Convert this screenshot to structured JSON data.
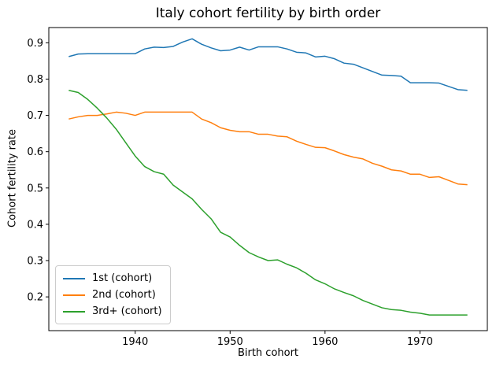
{
  "figure": {
    "title": "Italy cohort fertility by birth order",
    "xlabel": "Birth cohort",
    "ylabel": "Cohort fertility rate"
  },
  "chart_data": {
    "type": "line",
    "title": "Italy cohort fertility by birth order",
    "xlabel": "Birth cohort",
    "ylabel": "Cohort fertility rate",
    "grid": false,
    "legend_position": "lower left",
    "xlim": [
      1930.9,
      1977.1
    ],
    "ylim": [
      0.107,
      0.942
    ],
    "x_ticks": [
      1940,
      1950,
      1960,
      1970
    ],
    "y_ticks": [
      0.2,
      0.3,
      0.4,
      0.5,
      0.6,
      0.7,
      0.8,
      0.9
    ],
    "x": [
      1933,
      1934,
      1935,
      1936,
      1937,
      1938,
      1939,
      1940,
      1941,
      1942,
      1943,
      1944,
      1945,
      1946,
      1947,
      1948,
      1949,
      1950,
      1951,
      1952,
      1953,
      1954,
      1955,
      1956,
      1957,
      1958,
      1959,
      1960,
      1961,
      1962,
      1963,
      1964,
      1965,
      1966,
      1967,
      1968,
      1969,
      1970,
      1971,
      1972,
      1973,
      1974,
      1975
    ],
    "series": [
      {
        "name": "1st (cohort)",
        "color": "#1f77b4",
        "values": [
          0.862,
          0.869,
          0.87,
          0.87,
          0.87,
          0.87,
          0.87,
          0.87,
          0.883,
          0.888,
          0.887,
          0.89,
          0.902,
          0.911,
          0.896,
          0.886,
          0.878,
          0.88,
          0.888,
          0.88,
          0.889,
          0.889,
          0.889,
          0.883,
          0.874,
          0.872,
          0.861,
          0.863,
          0.856,
          0.844,
          0.841,
          0.831,
          0.821,
          0.811,
          0.81,
          0.808,
          0.79,
          0.79,
          0.79,
          0.789,
          0.78,
          0.771,
          0.769
        ]
      },
      {
        "name": "2nd (cohort)",
        "color": "#ff7f0e",
        "values": [
          0.69,
          0.696,
          0.7,
          0.7,
          0.704,
          0.709,
          0.706,
          0.7,
          0.709,
          0.709,
          0.709,
          0.709,
          0.709,
          0.709,
          0.69,
          0.68,
          0.666,
          0.659,
          0.655,
          0.655,
          0.648,
          0.648,
          0.643,
          0.641,
          0.629,
          0.62,
          0.612,
          0.611,
          0.602,
          0.592,
          0.585,
          0.58,
          0.568,
          0.56,
          0.55,
          0.547,
          0.538,
          0.538,
          0.529,
          0.531,
          0.521,
          0.511,
          0.509
        ]
      },
      {
        "name": "3rd+ (cohort)",
        "color": "#2ca02c",
        "values": [
          0.769,
          0.763,
          0.744,
          0.72,
          0.693,
          0.662,
          0.625,
          0.588,
          0.559,
          0.545,
          0.538,
          0.508,
          0.489,
          0.47,
          0.441,
          0.415,
          0.378,
          0.365,
          0.342,
          0.322,
          0.31,
          0.3,
          0.302,
          0.29,
          0.28,
          0.265,
          0.247,
          0.236,
          0.222,
          0.212,
          0.203,
          0.19,
          0.18,
          0.17,
          0.165,
          0.163,
          0.158,
          0.155,
          0.15,
          0.15,
          0.15,
          0.15,
          0.15
        ]
      }
    ]
  },
  "colors": {
    "axes_frame": "#000000",
    "tick": "#000000",
    "text": "#000000",
    "legend_border": "#cccccc"
  }
}
